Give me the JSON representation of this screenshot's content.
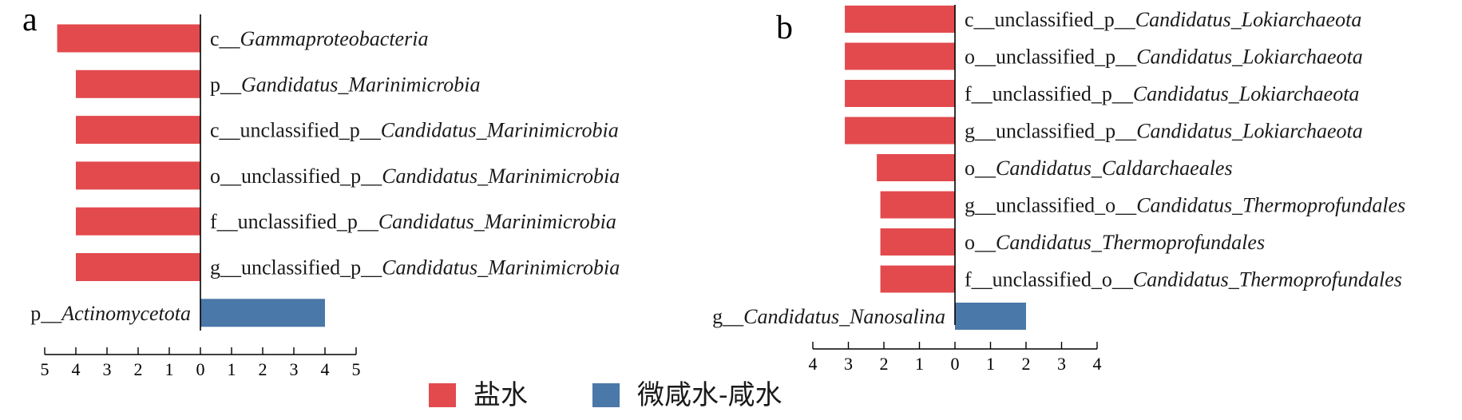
{
  "colors": {
    "brine": "#e34a4d",
    "brackish": "#4a78a8"
  },
  "legend": [
    {
      "label": "盐水",
      "color": "#e34a4d"
    },
    {
      "label": "微咸水-咸水",
      "color": "#4a78a8"
    }
  ],
  "chart_data": [
    {
      "type": "bar",
      "orientation": "horizontal-diverging",
      "panel_label": "a",
      "xlim": [
        -5,
        5
      ],
      "ticks": [
        "5",
        "4",
        "3",
        "2",
        "1",
        "0",
        "1",
        "2",
        "3",
        "4",
        "5"
      ],
      "bars": [
        {
          "prefix": "c__",
          "taxon": "Gammaproteobacteria",
          "value": -4.6,
          "group": "brine"
        },
        {
          "prefix": "p__",
          "taxon": "Gandidatus_Marinimicrobia",
          "value": -4.0,
          "group": "brine"
        },
        {
          "prefix": "c__unclassified_p__",
          "taxon": "Candidatus_Marinimicrobia",
          "value": -4.0,
          "group": "brine"
        },
        {
          "prefix": "o__unclassified_p__",
          "taxon": "Candidatus_Marinimicrobia",
          "value": -4.0,
          "group": "brine"
        },
        {
          "prefix": "f__unclassified_p__",
          "taxon": "Candidatus_Marinimicrobia",
          "value": -4.0,
          "group": "brine"
        },
        {
          "prefix": "g__unclassified_p__",
          "taxon": "Candidatus_Marinimicrobia",
          "value": -4.0,
          "group": "brine"
        },
        {
          "prefix": "p__",
          "taxon": "Actinomycetota",
          "value": 4.0,
          "group": "brackish"
        }
      ]
    },
    {
      "type": "bar",
      "orientation": "horizontal-diverging",
      "panel_label": "b",
      "xlim": [
        -4,
        4
      ],
      "ticks": [
        "4",
        "3",
        "2",
        "1",
        "0",
        "1",
        "2",
        "3",
        "4"
      ],
      "bars": [
        {
          "prefix": "c__unclassified_p__",
          "taxon": "Candidatus_Lokiarchaeota",
          "value": -3.1,
          "group": "brine"
        },
        {
          "prefix": "o__unclassified_p__",
          "taxon": "Candidatus_Lokiarchaeota",
          "value": -3.1,
          "group": "brine"
        },
        {
          "prefix": "f__unclassified_p__",
          "taxon": "Candidatus_Lokiarchaeota",
          "value": -3.1,
          "group": "brine"
        },
        {
          "prefix": "g__unclassified_p__",
          "taxon": "Candidatus_Lokiarchaeota",
          "value": -3.1,
          "group": "brine"
        },
        {
          "prefix": "o__",
          "taxon": "Candidatus_Caldarchaeales",
          "value": -2.2,
          "group": "brine"
        },
        {
          "prefix": "g__unclassified_o__",
          "taxon": "Candidatus_Thermoprofundales",
          "value": -2.1,
          "group": "brine"
        },
        {
          "prefix": "o__",
          "taxon": "Candidatus_Thermoprofundales",
          "value": -2.1,
          "group": "brine"
        },
        {
          "prefix": "f__unclassified_o__",
          "taxon": "Candidatus_Thermoprofundales",
          "value": -2.1,
          "group": "brine"
        },
        {
          "prefix": "g__",
          "taxon": "Candidatus_Nanosalina",
          "value": 2.0,
          "group": "brackish"
        }
      ]
    }
  ]
}
